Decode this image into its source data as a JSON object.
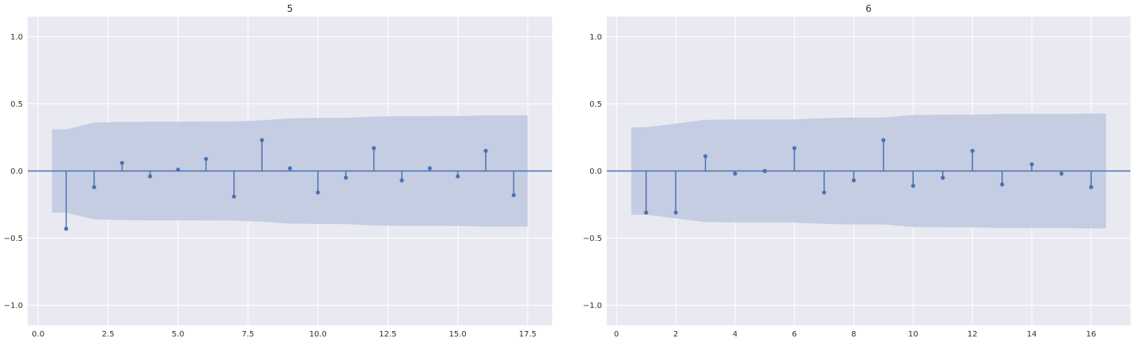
{
  "chart_data": [
    {
      "type": "stem",
      "title": "5",
      "xlabel": "",
      "ylabel": "",
      "xlim": [
        -0.375,
        18.375
      ],
      "ylim": [
        -1.15,
        1.15
      ],
      "xticks": [
        0.0,
        2.5,
        5.0,
        7.5,
        10.0,
        12.5,
        15.0,
        17.5
      ],
      "xtick_labels": [
        "0.0",
        "2.5",
        "5.0",
        "7.5",
        "10.0",
        "12.5",
        "15.0",
        "17.5"
      ],
      "yticks": [
        -1.0,
        -0.5,
        0.0,
        0.5,
        1.0
      ],
      "ytick_labels": [
        "−1.0",
        "−0.5",
        "0.0",
        "0.5",
        "1.0"
      ],
      "grid": true,
      "lags": [
        1,
        2,
        3,
        4,
        5,
        6,
        7,
        8,
        9,
        10,
        11,
        12,
        13,
        14,
        15,
        16,
        17
      ],
      "values": [
        -0.43,
        -0.12,
        0.06,
        -0.04,
        0.01,
        0.09,
        -0.19,
        0.23,
        0.02,
        -0.16,
        -0.05,
        0.17,
        -0.07,
        0.02,
        -0.04,
        0.15,
        -0.18
      ],
      "confint_x": [
        0.5,
        1,
        2,
        3,
        4,
        5,
        6,
        7,
        8,
        9,
        10,
        11,
        12,
        13,
        14,
        15,
        16,
        17,
        17.5
      ],
      "confint_upper": [
        0.31,
        0.31,
        0.36,
        0.366,
        0.367,
        0.367,
        0.368,
        0.369,
        0.377,
        0.393,
        0.395,
        0.396,
        0.406,
        0.408,
        0.408,
        0.409,
        0.414,
        0.414,
        0.414
      ],
      "colors": {
        "stem": "#4c72b0",
        "band": "#c3cbe1",
        "plot_bg": "#e9e9f1",
        "grid": "#ffffff"
      }
    },
    {
      "type": "stem",
      "title": "6",
      "xlabel": "",
      "ylabel": "",
      "xlim": [
        -0.325,
        17.325
      ],
      "ylim": [
        -1.15,
        1.15
      ],
      "xticks": [
        0,
        2,
        4,
        6,
        8,
        10,
        12,
        14,
        16
      ],
      "xtick_labels": [
        "0",
        "2",
        "4",
        "6",
        "8",
        "10",
        "12",
        "14",
        "16"
      ],
      "yticks": [
        -1.0,
        -0.5,
        0.0,
        0.5,
        1.0
      ],
      "ytick_labels": [
        "−1.0",
        "−0.5",
        "0.0",
        "0.5",
        "1.0"
      ],
      "grid": true,
      "lags": [
        1,
        2,
        3,
        4,
        5,
        6,
        7,
        8,
        9,
        10,
        11,
        12,
        13,
        14,
        15,
        16
      ],
      "values": [
        -0.31,
        -0.31,
        0.11,
        -0.02,
        0.0,
        0.17,
        -0.16,
        -0.07,
        0.23,
        -0.11,
        -0.05,
        0.15,
        -0.1,
        0.05,
        -0.02,
        -0.12
      ],
      "confint_x": [
        0.5,
        1,
        2,
        3,
        4,
        5,
        6,
        7,
        8,
        9,
        10,
        11,
        12,
        13,
        14,
        15,
        16,
        16.5
      ],
      "confint_upper": [
        0.326,
        0.326,
        0.353,
        0.381,
        0.383,
        0.383,
        0.384,
        0.394,
        0.398,
        0.399,
        0.417,
        0.419,
        0.42,
        0.424,
        0.425,
        0.425,
        0.428,
        0.428
      ],
      "colors": {
        "stem": "#4c72b0",
        "band": "#c3cbe1",
        "plot_bg": "#e9e9f1",
        "grid": "#ffffff"
      }
    }
  ]
}
